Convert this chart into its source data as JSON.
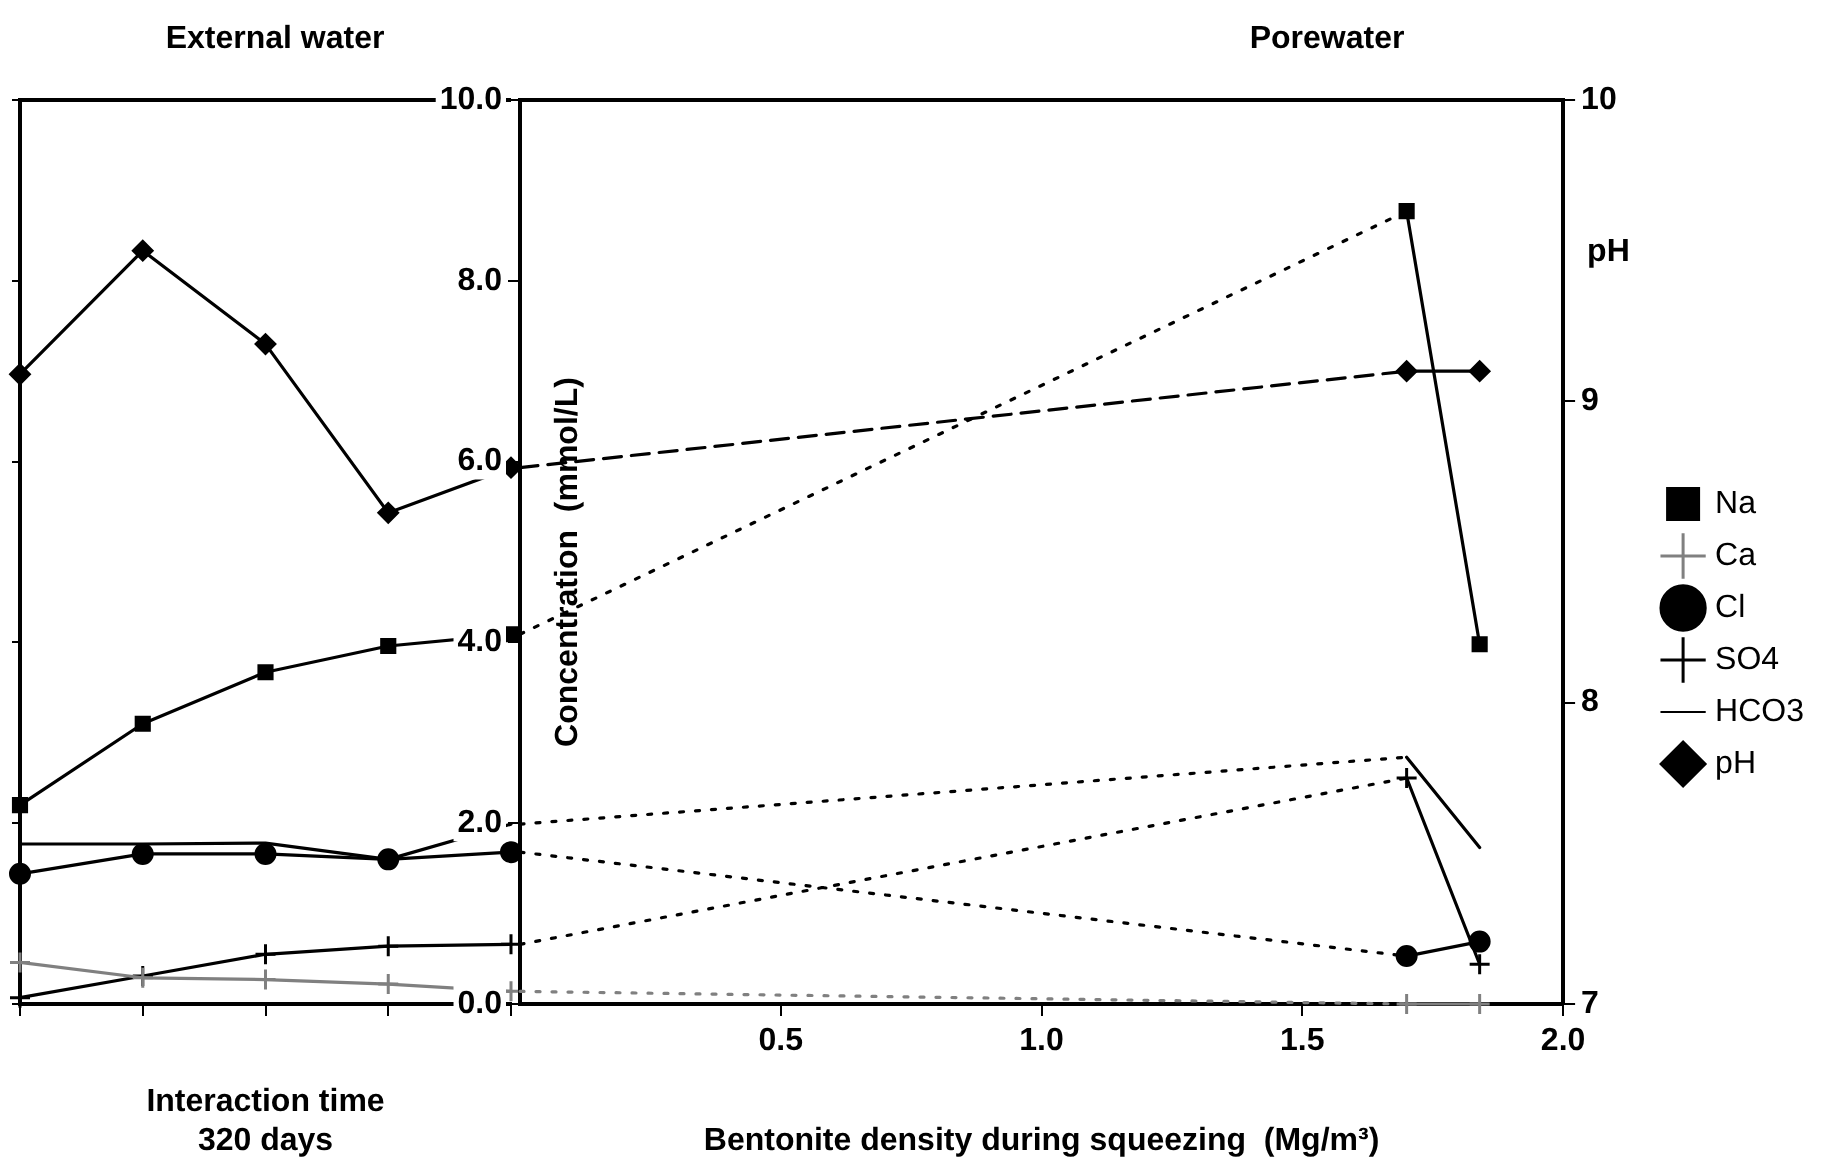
{
  "chart_data": [
    {
      "type": "line",
      "title": "External water",
      "xlabel": "Interaction time\n320 days",
      "categories": [
        null,
        null,
        null,
        null,
        null
      ],
      "ylim": [
        0,
        10
      ],
      "yticks": [
        0,
        2,
        4,
        6,
        8,
        10
      ],
      "y2lim": [
        7,
        10
      ],
      "y2ticks": [
        7,
        8,
        9,
        10
      ],
      "tick_labels": false,
      "grid": false,
      "legend": false,
      "series": [
        {
          "color": "#000000",
          "marker": "square",
          "line_style": "solid",
          "values": [
            2.2,
            3.1,
            3.67,
            3.96,
            4.09
          ]
        },
        {
          "color": "#808080",
          "marker": "cross",
          "line_style": "solid",
          "values": [
            0.46,
            0.29,
            0.27,
            0.22,
            0.14
          ]
        },
        {
          "color": "#000000",
          "marker": "circle",
          "line_style": "solid",
          "values": [
            1.44,
            1.66,
            1.66,
            1.6,
            1.68
          ]
        },
        {
          "color": "#000000",
          "marker": "cross",
          "line_style": "solid",
          "values": [
            0.07,
            0.31,
            0.55,
            0.64,
            0.66
          ]
        },
        {
          "color": "#000000",
          "line_style": "solid",
          "values": [
            1.77,
            1.77,
            1.78,
            1.6,
            1.99
          ]
        },
        {
          "color": "#000000",
          "marker": "diamond",
          "line_style": "solid",
          "axis": "y2",
          "values": [
            9.09,
            9.5,
            9.19,
            8.63,
            8.78
          ]
        }
      ]
    },
    {
      "type": "line",
      "title": "Porewater",
      "xlabel": "Bentonite density during squeezing  (Mg/m³)",
      "ylabel": "Concentration  (mmol/L)",
      "y2label": "pH",
      "xlim": [
        0,
        2
      ],
      "xticks": [
        {
          "value": 0.5,
          "label": "0.5"
        },
        {
          "value": 1,
          "label": "1.0"
        },
        {
          "value": 1.5,
          "label": "1.5"
        },
        {
          "value": 2,
          "label": "2.0"
        }
      ],
      "ylim": [
        0,
        10
      ],
      "yticks": [
        {
          "value": 0,
          "label": "0.0"
        },
        {
          "value": 2,
          "label": "2.0"
        },
        {
          "value": 4,
          "label": "4.0"
        },
        {
          "value": 6,
          "label": "6.0"
        },
        {
          "value": 8,
          "label": "8.0"
        },
        {
          "value": 10,
          "label": "10.0"
        }
      ],
      "y2lim": [
        7,
        10
      ],
      "y2ticks": [
        7,
        8,
        9,
        10
      ],
      "grid": false,
      "legend": "right",
      "series": [
        {
          "color": "#000000",
          "line_style": "dotted",
          "x": [
            0,
            1.7
          ],
          "values": [
            4.09,
            8.77
          ]
        },
        {
          "color": "#808080",
          "line_style": "dotted",
          "x": [
            0,
            1.7
          ],
          "values": [
            0.14,
            0
          ]
        },
        {
          "color": "#000000",
          "line_style": "dotted",
          "x": [
            0,
            1.7
          ],
          "values": [
            1.68,
            0.53
          ]
        },
        {
          "color": "#000000",
          "line_style": "dotted",
          "x": [
            0,
            1.7
          ],
          "values": [
            0.66,
            2.5
          ]
        },
        {
          "color": "#000000",
          "line_style": "dotted",
          "x": [
            0,
            1.7
          ],
          "values": [
            1.99,
            2.73
          ]
        },
        {
          "color": "#000000",
          "line_style": "dashed",
          "axis": "y2",
          "x": [
            0,
            1.7
          ],
          "values": [
            8.78,
            9.1
          ]
        },
        {
          "name": "Na",
          "color": "#000000",
          "marker": "square",
          "line_style": "solid",
          "x": [
            1.7,
            1.84
          ],
          "values": [
            8.77,
            3.98
          ]
        },
        {
          "name": "Ca",
          "color": "#808080",
          "marker": "cross",
          "line_style": "solid",
          "x": [
            1.7,
            1.84
          ],
          "values": [
            0,
            0
          ]
        },
        {
          "name": "Cl",
          "color": "#000000",
          "marker": "circle",
          "line_style": "solid",
          "x": [
            1.7,
            1.84
          ],
          "values": [
            0.53,
            0.69
          ]
        },
        {
          "name": "SO4",
          "color": "#000000",
          "marker": "cross",
          "line_style": "solid",
          "x": [
            1.7,
            1.84
          ],
          "values": [
            2.5,
            0.44
          ]
        },
        {
          "name": "HCO3",
          "color": "#000000",
          "line_style": "solid",
          "x": [
            1.7,
            1.84
          ],
          "values": [
            2.73,
            1.73
          ]
        },
        {
          "name": "pH",
          "color": "#000000",
          "marker": "diamond",
          "line_style": "solid",
          "axis": "y2",
          "x": [
            1.7,
            1.84
          ],
          "values": [
            9.1,
            9.1
          ]
        }
      ]
    }
  ]
}
